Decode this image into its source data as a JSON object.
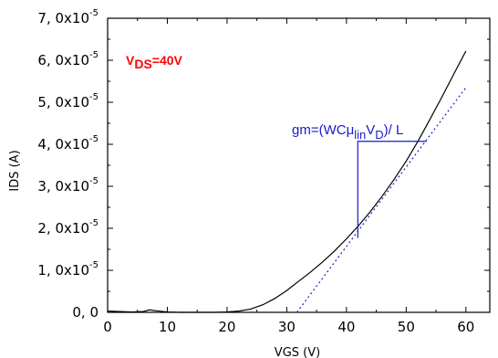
{
  "chart_data": {
    "type": "line",
    "xlabel": "VGS (V)",
    "ylabel": "IDS (A)",
    "xlim": [
      0,
      64
    ],
    "ylim": [
      0,
      7e-05
    ],
    "x_ticks": [
      0,
      10,
      20,
      30,
      40,
      50,
      60
    ],
    "y_ticks": [
      {
        "value": 0,
        "mantissa": "0, 0",
        "exponent": ""
      },
      {
        "value": 1e-05,
        "mantissa": "1, 0x10",
        "exponent": "-5"
      },
      {
        "value": 2e-05,
        "mantissa": "2, 0x10",
        "exponent": "-5"
      },
      {
        "value": 3e-05,
        "mantissa": "3, 0x10",
        "exponent": "-5"
      },
      {
        "value": 4e-05,
        "mantissa": "4, 0x10",
        "exponent": "-5"
      },
      {
        "value": 5e-05,
        "mantissa": "5, 0x10",
        "exponent": "-5"
      },
      {
        "value": 6e-05,
        "mantissa": "6, 0x10",
        "exponent": "-5"
      },
      {
        "value": 7e-05,
        "mantissa": "7, 0x10",
        "exponent": "-5"
      }
    ],
    "grid": false,
    "series": [
      {
        "color": "#000000",
        "style": "solid",
        "x": [
          0,
          2,
          4,
          6,
          7,
          8,
          10,
          12,
          14,
          16,
          18,
          20,
          22,
          24,
          26,
          28,
          30,
          32,
          34,
          36,
          38,
          40,
          42,
          44,
          46,
          48,
          50,
          52,
          54,
          56,
          58,
          60
        ],
        "y": [
          3e-07,
          2e-07,
          1e-07,
          2e-07,
          6e-07,
          4e-07,
          1e-07,
          0,
          0,
          0,
          0,
          1e-07,
          3e-07,
          8e-07,
          1.8e-06,
          3.3e-06,
          5.2e-06,
          7.4e-06,
          9.6e-06,
          1.2e-05,
          1.46e-05,
          1.75e-05,
          2.06e-05,
          2.4e-05,
          2.77e-05,
          3.17e-05,
          3.6e-05,
          4.08e-05,
          4.6e-05,
          5.13e-05,
          5.68e-05,
          6.22e-05
        ]
      },
      {
        "color": "#1a1acc",
        "style": "dotted",
        "x": [
          31.7,
          60
        ],
        "y": [
          0,
          5.35e-05
        ]
      }
    ],
    "slope_triangle": {
      "color": "#1a1acc",
      "x_start": 41.9,
      "x_end": 53.4,
      "y_low": 1.77e-05,
      "y_high": 4.07e-05
    },
    "annotations": {
      "vds": {
        "main": "V",
        "sub": "DS",
        "rest": "=40V"
      },
      "gm": {
        "pre": "gm=(WCμ",
        "sub1": "lin",
        "mid": "V",
        "sub2": "D",
        "post": ")/ L"
      }
    }
  }
}
